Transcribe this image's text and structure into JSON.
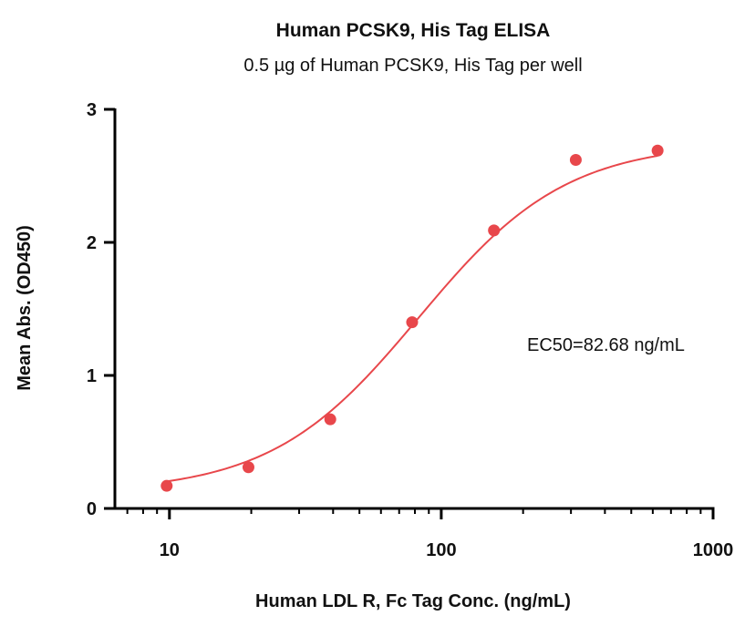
{
  "chart_data": {
    "type": "scatter",
    "title": "Human PCSK9, His Tag ELISA",
    "subtitle": "0.5 µg of Human PCSK9, His Tag per well",
    "xlabel": "Human LDL R, Fc Tag Conc. (ng/mL)",
    "ylabel": "Mean Abs. (OD450)",
    "x_scale": "log10",
    "xlim": [
      6.3,
      1000
    ],
    "ylim": [
      0,
      3
    ],
    "x_ticks": [
      10,
      100,
      1000
    ],
    "x_tick_labels": [
      "10",
      "100",
      "1000"
    ],
    "y_ticks": [
      0,
      1,
      2,
      3
    ],
    "y_tick_labels": [
      "0",
      "1",
      "2",
      "3"
    ],
    "grid": false,
    "annotation": "EC50=82.68 ng/mL",
    "point_color": "#e8474b",
    "curve_color": "#e8474b",
    "series": [
      {
        "x": [
          9.77,
          19.53,
          39.06,
          78.13,
          156.25,
          312.5,
          625
        ],
        "y": [
          0.17,
          0.31,
          0.67,
          1.4,
          2.09,
          2.62,
          2.69
        ]
      }
    ],
    "fit": {
      "model": "4PL",
      "bottom": 0.12,
      "top": 2.75,
      "ec50": 82.68,
      "hill": 1.6
    }
  }
}
